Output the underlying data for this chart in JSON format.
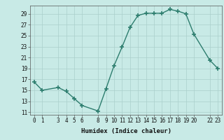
{
  "x": [
    0,
    1,
    3,
    4,
    5,
    6,
    8,
    9,
    10,
    11,
    12,
    13,
    14,
    15,
    16,
    17,
    18,
    19,
    20,
    22,
    23
  ],
  "y": [
    16.5,
    15.0,
    15.5,
    14.8,
    13.5,
    12.2,
    11.2,
    15.3,
    19.5,
    22.9,
    26.5,
    28.7,
    29.1,
    29.1,
    29.1,
    29.8,
    29.5,
    29.0,
    25.3,
    20.5,
    19.0
  ],
  "xticks": [
    0,
    1,
    3,
    4,
    5,
    6,
    8,
    9,
    10,
    11,
    12,
    13,
    14,
    15,
    16,
    17,
    18,
    19,
    20,
    22,
    23
  ],
  "yticks": [
    11,
    13,
    15,
    17,
    19,
    21,
    23,
    25,
    27,
    29
  ],
  "ylim": [
    10.5,
    30.5
  ],
  "xlim": [
    -0.5,
    23.5
  ],
  "xlabel": "Humidex (Indice chaleur)",
  "line_color": "#2d7d6e",
  "marker_color": "#2d7d6e",
  "bg_color": "#c8eae6",
  "grid_color": "#aacfcb"
}
